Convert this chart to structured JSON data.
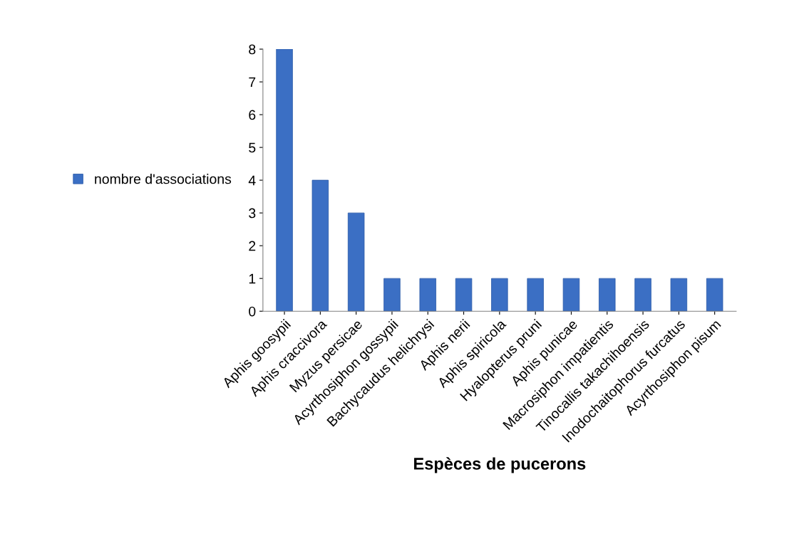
{
  "chart_data": {
    "type": "bar",
    "xlabel": "Espèces de pucerons",
    "categories": [
      "Aphis goosypii",
      "Aphis craccivora",
      "Myzus persicae",
      "Acyrthosiphon gossypii",
      "Bachycaudus helichrysi",
      "Aphis nerii",
      "Aphis spiricola",
      "Hyalopterus pruni",
      "Aphis punicae",
      "Macrosiphon impatientis",
      "Tinocallis takachihoensis",
      "Inodochaitophorus furcatus",
      "Acyrthosiphon pisum"
    ],
    "series": [
      {
        "name": "nombre d'associations",
        "color": "#3b6fc4",
        "values": [
          8,
          4,
          3,
          1,
          1,
          1,
          1,
          1,
          1,
          1,
          1,
          1,
          1
        ]
      }
    ],
    "ylim": [
      0,
      8
    ],
    "yticks": [
      0,
      1,
      2,
      3,
      4,
      5,
      6,
      7,
      8
    ],
    "legend": "left",
    "grid": false
  }
}
